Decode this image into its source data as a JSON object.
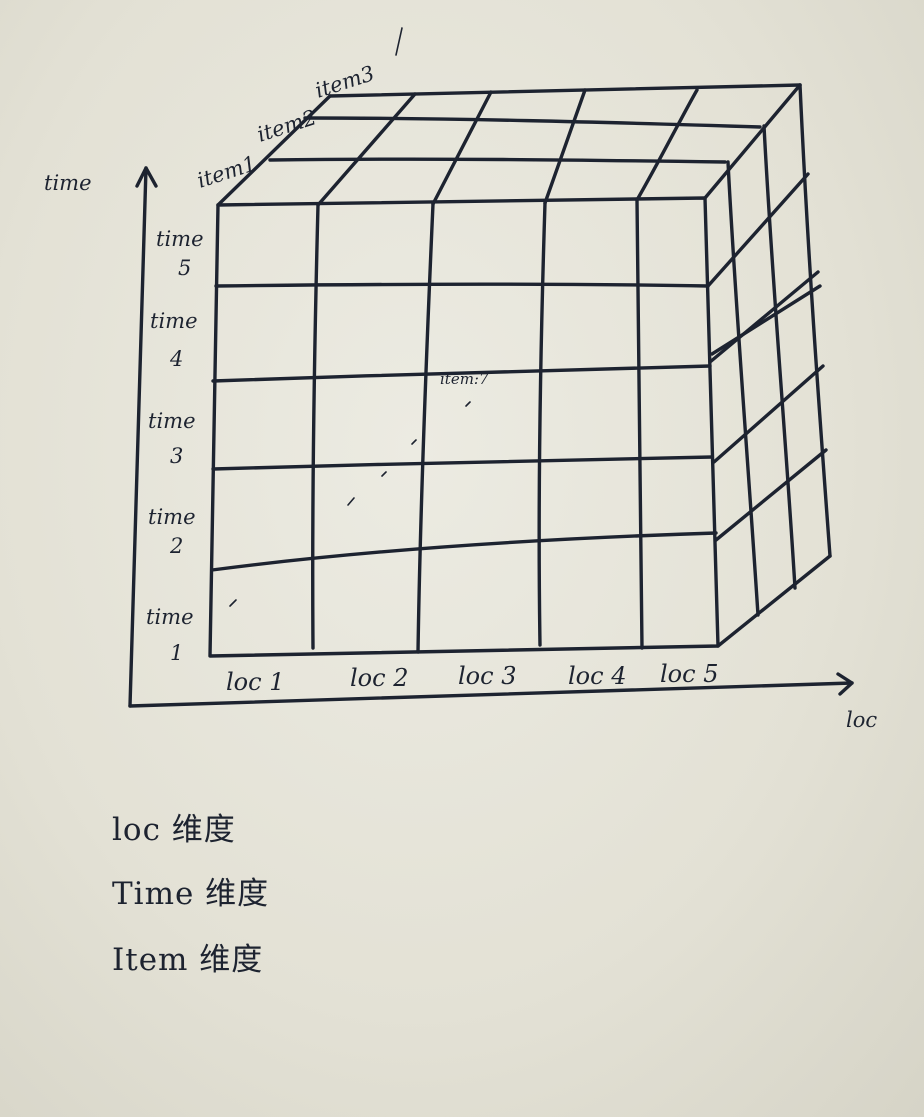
{
  "axes": {
    "time_axis_label": "time",
    "loc_axis_label": "loc"
  },
  "time_labels": [
    {
      "word": "time",
      "num": "5"
    },
    {
      "word": "time",
      "num": "4"
    },
    {
      "word": "time",
      "num": "3"
    },
    {
      "word": "time",
      "num": "2"
    },
    {
      "word": "time",
      "num": "1"
    }
  ],
  "loc_labels": [
    "loc 1",
    "loc 2",
    "loc 3",
    "loc 4",
    "loc 5"
  ],
  "item_labels": [
    "item1",
    "item2",
    "item3"
  ],
  "center_label": "item:7",
  "legend": [
    "loc 维度",
    "Time 维度",
    "Item 维度"
  ]
}
